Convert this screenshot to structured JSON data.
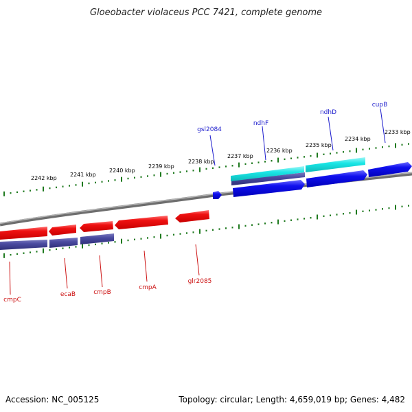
{
  "title": "Gloeobacter violaceus PCC 7421, complete genome",
  "footer": {
    "accession": "Accession: NC_005125",
    "topology": "Topology: circular; Length: 4,659,019 bp; Genes: 4,482"
  },
  "colors": {
    "forward_label": "#1a1acc",
    "reverse_label": "#cc1111",
    "forward_gene": "#1010ee",
    "forward_cds_cyan": "#19e6e6",
    "reverse_gene": "#ee1111",
    "rna_band": "#4a4aa0",
    "tick": "#1f7a1f",
    "backbone": "#888888"
  },
  "ticks": [
    {
      "label": "2242 kbp"
    },
    {
      "label": "2241 kbp"
    },
    {
      "label": "2240 kbp"
    },
    {
      "label": "2239 kbp"
    },
    {
      "label": "2238 kbp"
    },
    {
      "label": "2237 kbp"
    },
    {
      "label": "2236 kbp"
    },
    {
      "label": "2235 kbp"
    },
    {
      "label": "2234 kbp"
    },
    {
      "label": "2233 kbp"
    }
  ],
  "genes_forward": [
    {
      "name": "gsl2084"
    },
    {
      "name": "ndhF"
    },
    {
      "name": "ndhD"
    },
    {
      "name": "cupB"
    }
  ],
  "genes_reverse": [
    {
      "name": "cmpC"
    },
    {
      "name": "ecaB"
    },
    {
      "name": "cmpB"
    },
    {
      "name": "cmpA"
    },
    {
      "name": "glr2085"
    }
  ]
}
